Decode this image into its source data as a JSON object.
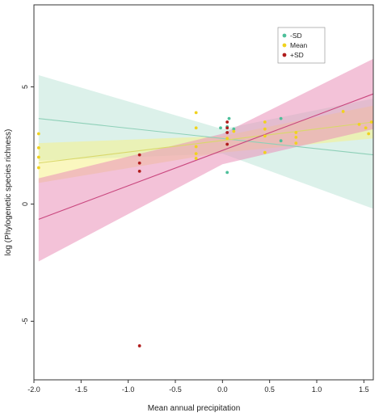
{
  "chart_data": {
    "type": "scatter",
    "title": "",
    "xlabel": "Mean annual precipitation",
    "ylabel": "log (Phylogenetic species richness)",
    "xlim": [
      -2.0,
      1.6
    ],
    "ylim": [
      -7.5,
      8.5
    ],
    "x_ticks": [
      -2.0,
      -1.5,
      -1.0,
      -0.5,
      0.0,
      0.5,
      1.0,
      1.5
    ],
    "x_tick_labels": [
      "-2.0",
      "-1.5",
      "-1.0",
      "-0.5",
      "0.0",
      "0.5",
      "1.0",
      "1.5"
    ],
    "y_ticks": [
      -5,
      0,
      5
    ],
    "y_tick_labels": [
      "-5",
      "0",
      "5"
    ],
    "grid": false,
    "legend_position": "top-right",
    "series": [
      {
        "name": "-SD",
        "color": "#4dbf9a",
        "band_color": "#bfe6d9",
        "line_color": "#8ed0b8",
        "fit": {
          "x": [
            -1.95,
            1.6
          ],
          "y": [
            3.65,
            2.1
          ]
        },
        "band": {
          "x": [
            -1.95,
            0.0,
            1.6
          ],
          "lower": [
            1.85,
            2.15,
            -0.2
          ],
          "upper": [
            5.5,
            3.2,
            4.5
          ]
        },
        "points": [
          {
            "x": 0.05,
            "y": 3.3
          },
          {
            "x": 0.07,
            "y": 3.65
          },
          {
            "x": 0.12,
            "y": 3.2
          },
          {
            "x": 0.62,
            "y": 3.65
          },
          {
            "x": 0.62,
            "y": 2.7
          },
          {
            "x": 0.05,
            "y": 1.35
          },
          {
            "x": -0.02,
            "y": 3.25
          }
        ]
      },
      {
        "name": "Mean",
        "color": "#f0d21e",
        "band_color": "#f6f08a",
        "line_color": "#d9d86a",
        "fit": {
          "x": [
            -1.95,
            1.6
          ],
          "y": [
            1.75,
            3.5
          ]
        },
        "band": {
          "x": [
            -1.95,
            0.0,
            1.6
          ],
          "lower": [
            0.9,
            2.2,
            2.8
          ],
          "upper": [
            2.6,
            2.9,
            4.2
          ]
        },
        "points": [
          {
            "x": -1.95,
            "y": 3.0
          },
          {
            "x": -1.95,
            "y": 2.4
          },
          {
            "x": -1.95,
            "y": 2.0
          },
          {
            "x": -1.95,
            "y": 1.55
          },
          {
            "x": -0.28,
            "y": 3.9
          },
          {
            "x": -0.28,
            "y": 3.25
          },
          {
            "x": -0.28,
            "y": 2.45
          },
          {
            "x": -0.28,
            "y": 2.15
          },
          {
            "x": -0.28,
            "y": 1.95
          },
          {
            "x": 0.05,
            "y": 2.8
          },
          {
            "x": 0.12,
            "y": 3.1
          },
          {
            "x": 0.45,
            "y": 3.5
          },
          {
            "x": 0.45,
            "y": 3.2
          },
          {
            "x": 0.45,
            "y": 2.9
          },
          {
            "x": 0.45,
            "y": 2.2
          },
          {
            "x": 0.78,
            "y": 3.05
          },
          {
            "x": 0.78,
            "y": 2.85
          },
          {
            "x": 0.78,
            "y": 2.6
          },
          {
            "x": 1.28,
            "y": 3.95
          },
          {
            "x": 1.45,
            "y": 3.4
          },
          {
            "x": 1.52,
            "y": 3.25
          },
          {
            "x": 1.55,
            "y": 3.0
          },
          {
            "x": 1.58,
            "y": 3.5
          }
        ]
      },
      {
        "name": "+SD",
        "color": "#b01c1c",
        "band_color": "#ea8fb8",
        "line_color": "#c9467e",
        "fit": {
          "x": [
            -1.95,
            1.6
          ],
          "y": [
            -0.65,
            4.7
          ]
        },
        "band": {
          "x": [
            -1.95,
            0.0,
            1.6
          ],
          "lower": [
            -2.45,
            1.7,
            3.2
          ],
          "upper": [
            1.1,
            3.0,
            6.2
          ]
        },
        "points": [
          {
            "x": -0.88,
            "y": 2.1
          },
          {
            "x": -0.88,
            "y": 1.75
          },
          {
            "x": -0.88,
            "y": 1.4
          },
          {
            "x": -0.88,
            "y": -6.05
          },
          {
            "x": 0.05,
            "y": 3.5
          },
          {
            "x": 0.05,
            "y": 3.25
          },
          {
            "x": 0.05,
            "y": 3.05
          },
          {
            "x": 0.05,
            "y": 2.55
          }
        ]
      }
    ]
  }
}
